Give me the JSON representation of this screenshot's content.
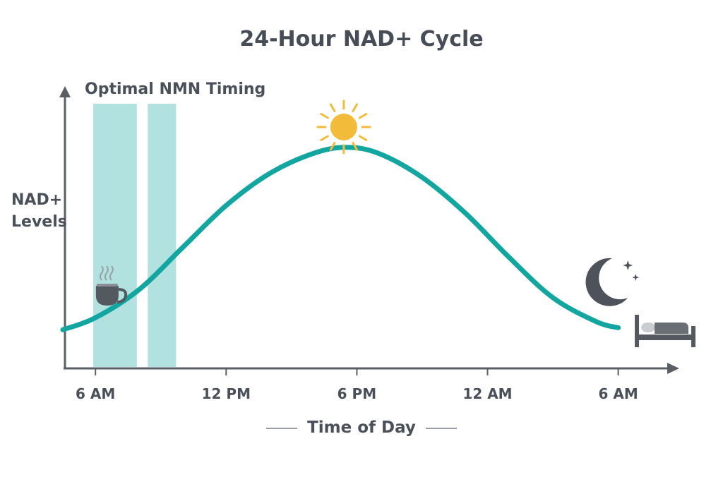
{
  "chart_data": {
    "type": "line",
    "title": "24-Hour NAD+ Cycle",
    "xlabel": "Time of Day",
    "ylabel": "NAD+\nLevels",
    "x_ticks": [
      {
        "hour": 6,
        "label": "6 AM"
      },
      {
        "hour": 12,
        "label": "12 PM"
      },
      {
        "hour": 18,
        "label": "6 PM"
      },
      {
        "hour": 24,
        "label": "12 AM"
      },
      {
        "hour": 30,
        "label": "6 AM"
      }
    ],
    "xlim": [
      4.6,
      32.8
    ],
    "ylim": [
      0,
      1
    ],
    "series": [
      {
        "color": "#13a6a0",
        "x": [
          4.5,
          6,
          8,
          10,
          12,
          14,
          16,
          17.5,
          19,
          21,
          23,
          25,
          27,
          29,
          30
        ],
        "y": [
          0.08,
          0.14,
          0.28,
          0.49,
          0.7,
          0.86,
          0.96,
          0.99,
          0.96,
          0.84,
          0.66,
          0.44,
          0.24,
          0.12,
          0.09
        ]
      }
    ],
    "highlight": {
      "label": "Optimal NMN Timing",
      "color": "#b2e2e0",
      "bands": [
        [
          5.9,
          7.9
        ],
        [
          8.4,
          9.7
        ]
      ]
    },
    "icons": [
      {
        "name": "coffee-cup-icon",
        "hour": 6.8,
        "color": "#54585f"
      },
      {
        "name": "sun-icon",
        "hour": 17.4,
        "color": "#f2bc3a"
      },
      {
        "name": "moon-stars-icon",
        "hour": 29.6,
        "color": "#4e525a"
      },
      {
        "name": "bed-icon",
        "hour": 30.5,
        "color": "#54585f"
      }
    ],
    "legend": "none",
    "grid": false
  }
}
